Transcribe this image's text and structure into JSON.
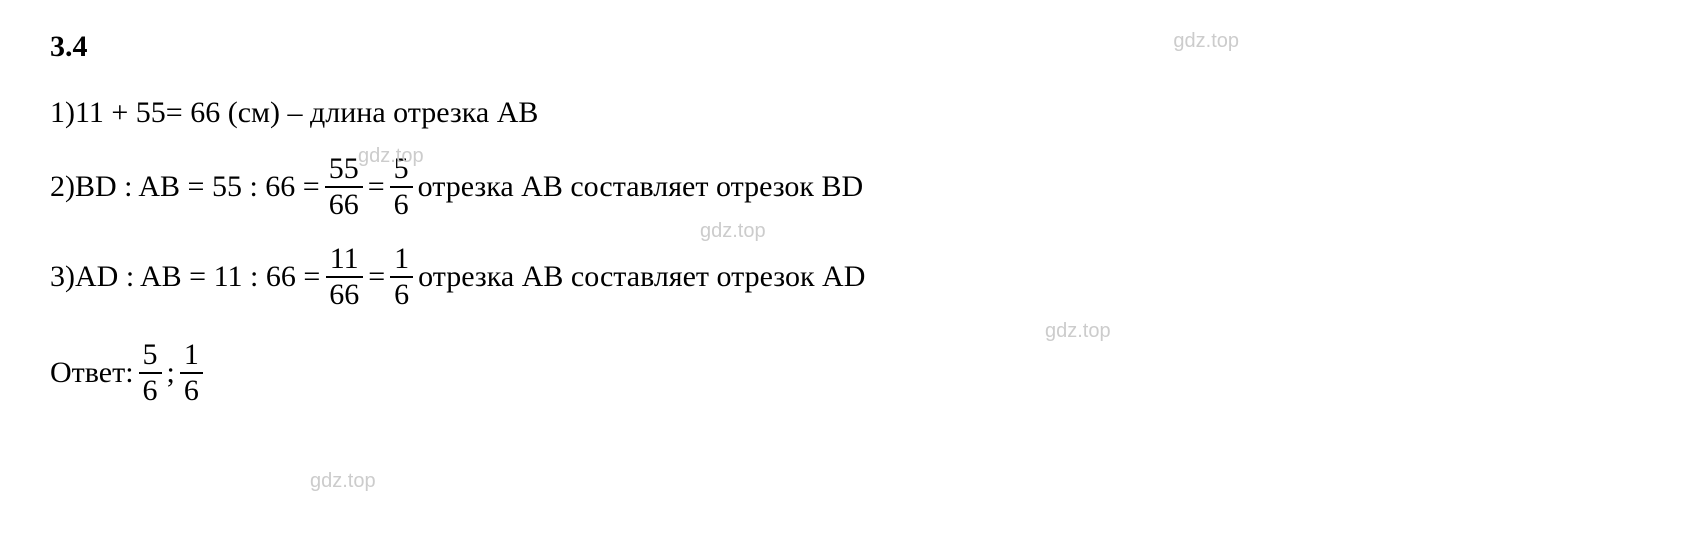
{
  "watermark": "gdz.top",
  "problemNumber": "3.4",
  "line1": {
    "indexLabel": "1) ",
    "expr": "11 + 55= 66 (см) – длина отрезка AB"
  },
  "line2": {
    "indexLabel": "2) ",
    "prefix": "BD : AB = 55 : 66 = ",
    "frac1": {
      "num": "55",
      "den": "66"
    },
    "mid": " = ",
    "frac2": {
      "num": "5",
      "den": "6"
    },
    "suffix": " отрезка AB составляет отрезок BD"
  },
  "line3": {
    "indexLabel": "3) ",
    "prefix": "AD : AB = 11 : 66 = ",
    "frac1": {
      "num": "11",
      "den": "66"
    },
    "mid": " = ",
    "frac2": {
      "num": "1",
      "den": "6"
    },
    "suffix": " отрезка AB составляет отрезок AD"
  },
  "answer": {
    "label": "Ответ: ",
    "frac1": {
      "num": "5",
      "den": "6"
    },
    "sep": "; ",
    "frac2": {
      "num": "1",
      "den": "6"
    }
  },
  "styles": {
    "text_color": "#000000",
    "background_color": "#ffffff",
    "watermark_color": "#cccccc",
    "font_family": "Times New Roman",
    "base_fontsize": 30,
    "watermark_fontsize": 20
  }
}
